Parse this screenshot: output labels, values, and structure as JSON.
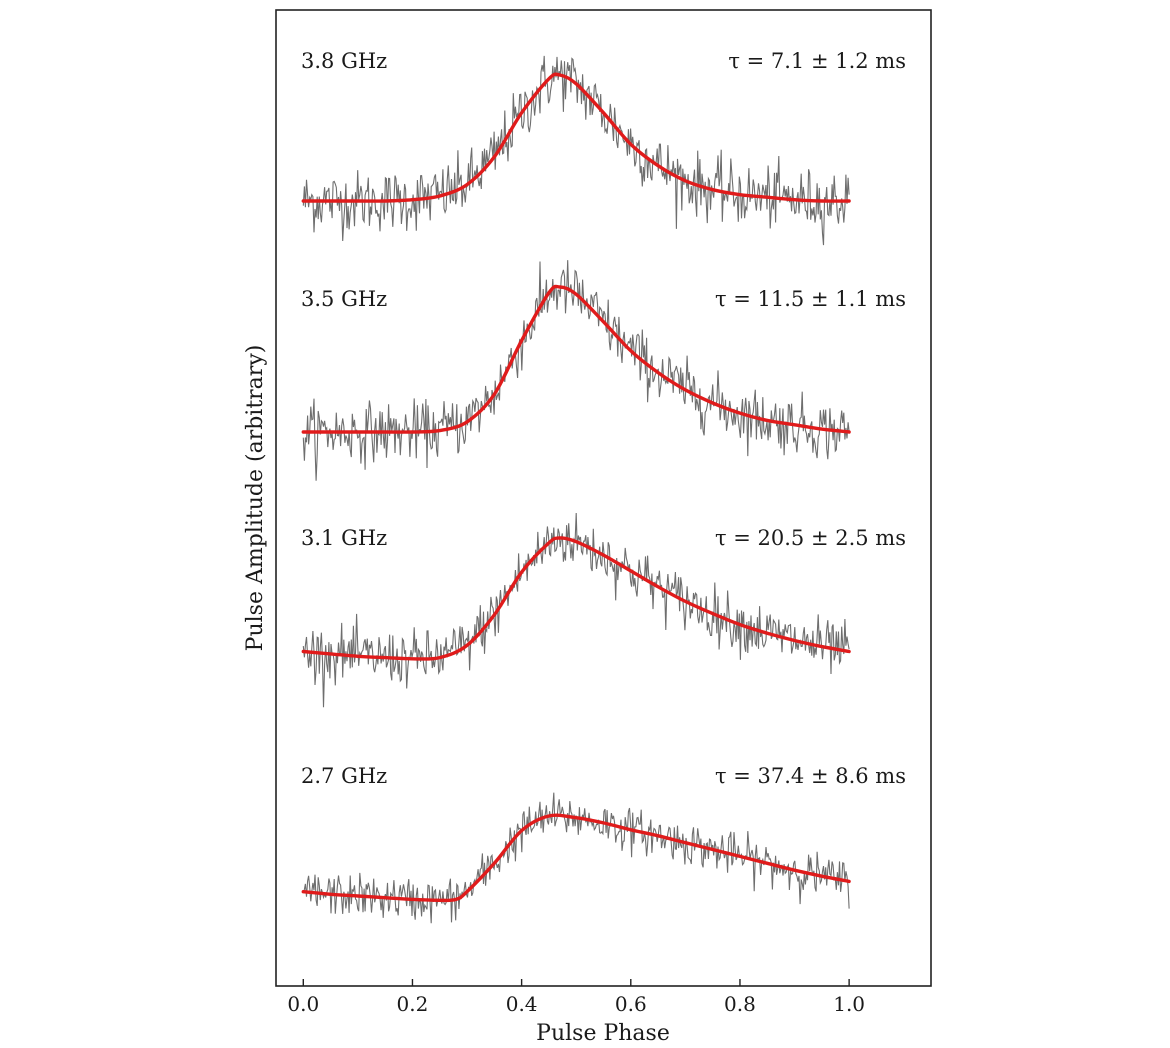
{
  "chart_data": {
    "type": "line",
    "xlabel": "Pulse Phase",
    "ylabel": "Pulse Amplitude (arbitrary)",
    "xlim": [
      -0.05,
      1.15
    ],
    "xticks": [
      "0.0",
      "0.2",
      "0.4",
      "0.6",
      "0.8",
      "1.0"
    ],
    "grid": false,
    "panels": [
      {
        "band": "3.8 GHz",
        "tau": "τ = 7.1 ± 1.2 ms",
        "fit": {
          "x": [
            0.0,
            0.05,
            0.1,
            0.15,
            0.2,
            0.25,
            0.3,
            0.35,
            0.4,
            0.45,
            0.47,
            0.5,
            0.55,
            0.6,
            0.65,
            0.7,
            0.75,
            0.8,
            0.85,
            0.9,
            0.95,
            1.0
          ],
          "y": [
            0.0,
            0.0,
            0.0,
            0.0,
            0.01,
            0.04,
            0.13,
            0.35,
            0.7,
            0.97,
            1.0,
            0.93,
            0.7,
            0.45,
            0.28,
            0.16,
            0.09,
            0.05,
            0.03,
            0.01,
            0.0,
            0.0
          ]
        },
        "noise": 0.22
      },
      {
        "band": "3.5 GHz",
        "tau": "τ = 11.5 ± 1.1 ms",
        "fit": {
          "x": [
            0.0,
            0.05,
            0.1,
            0.15,
            0.2,
            0.25,
            0.3,
            0.35,
            0.4,
            0.45,
            0.47,
            0.5,
            0.55,
            0.6,
            0.65,
            0.7,
            0.75,
            0.8,
            0.85,
            0.9,
            0.95,
            1.0
          ],
          "y": [
            0.0,
            0.0,
            0.0,
            0.0,
            0.0,
            0.01,
            0.07,
            0.26,
            0.63,
            0.96,
            1.0,
            0.95,
            0.76,
            0.56,
            0.41,
            0.29,
            0.2,
            0.13,
            0.08,
            0.05,
            0.02,
            0.0
          ]
        },
        "noise": 0.18
      },
      {
        "band": "3.1 GHz",
        "tau": "τ = 20.5 ± 2.5 ms",
        "fit": {
          "x": [
            0.0,
            0.05,
            0.1,
            0.15,
            0.2,
            0.25,
            0.3,
            0.35,
            0.4,
            0.45,
            0.47,
            0.5,
            0.55,
            0.6,
            0.65,
            0.7,
            0.75,
            0.8,
            0.85,
            0.9,
            0.95,
            1.0
          ],
          "y": [
            0.07,
            0.05,
            0.03,
            0.02,
            0.01,
            0.02,
            0.12,
            0.37,
            0.72,
            0.96,
            1.0,
            0.97,
            0.86,
            0.73,
            0.6,
            0.48,
            0.38,
            0.29,
            0.22,
            0.16,
            0.11,
            0.07
          ]
        },
        "noise": 0.2
      },
      {
        "band": "2.7 GHz",
        "tau": "τ = 37.4 ± 8.6 ms",
        "fit": {
          "x": [
            0.0,
            0.05,
            0.1,
            0.15,
            0.2,
            0.25,
            0.28,
            0.3,
            0.35,
            0.4,
            0.45,
            0.5,
            0.55,
            0.6,
            0.65,
            0.7,
            0.75,
            0.8,
            0.85,
            0.9,
            0.95,
            1.0
          ],
          "y": [
            0.12,
            0.09,
            0.07,
            0.05,
            0.03,
            0.02,
            0.03,
            0.12,
            0.45,
            0.83,
            1.0,
            0.98,
            0.92,
            0.84,
            0.77,
            0.69,
            0.61,
            0.53,
            0.45,
            0.37,
            0.3,
            0.24
          ]
        },
        "noise": 0.22
      }
    ],
    "colors": {
      "data": "#6e6e6e",
      "fit": "#e01b1b",
      "axis": "#222222"
    }
  }
}
